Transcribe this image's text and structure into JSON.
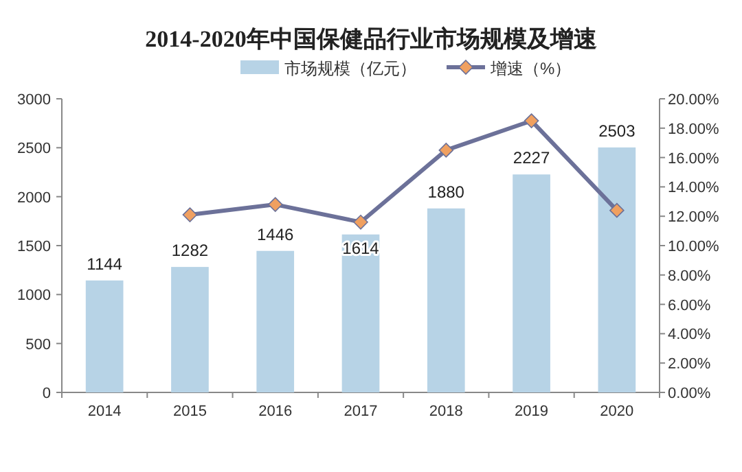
{
  "chart_data": {
    "type": "bar",
    "title": "2014-2020年中国保健品行业市场规模及增速",
    "categories": [
      "2014",
      "2015",
      "2016",
      "2017",
      "2018",
      "2019",
      "2020"
    ],
    "series": [
      {
        "name": "市场规模（亿元）",
        "color": "#b7d3e6",
        "values": [
          1144,
          1282,
          1446,
          1614,
          1880,
          2227,
          2503
        ],
        "value_labels": [
          "1144",
          "1282",
          "1446",
          "1614",
          "1880",
          "2227",
          "2503"
        ]
      },
      {
        "name": "增速（%）",
        "type": "line",
        "axis": "y2",
        "color": "#6c7199",
        "marker": "diamond",
        "values": [
          null,
          12.1,
          12.8,
          11.6,
          16.5,
          18.5,
          12.4
        ]
      }
    ],
    "ylim": [
      0,
      3000
    ],
    "yticks": [
      0,
      500,
      1000,
      1500,
      2000,
      2500,
      3000
    ],
    "y2lim": [
      0,
      20
    ],
    "y2ticks": [
      {
        "value": 0,
        "label": "0.00%"
      },
      {
        "value": 2,
        "label": "2.00%"
      },
      {
        "value": 4,
        "label": "4.00%"
      },
      {
        "value": 6,
        "label": "6.00%"
      },
      {
        "value": 8,
        "label": "8.00%"
      },
      {
        "value": 10,
        "label": "10.00%"
      },
      {
        "value": 12,
        "label": "12.00%"
      },
      {
        "value": 14,
        "label": "14.00%"
      },
      {
        "value": 16,
        "label": "16.00%"
      },
      {
        "value": 18,
        "label": "18.00%"
      },
      {
        "value": 20,
        "label": "20.00%"
      }
    ],
    "legend": "top",
    "grid": false
  }
}
